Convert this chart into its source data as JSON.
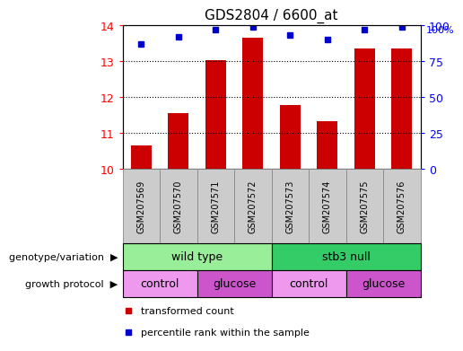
{
  "title": "GDS2804 / 6600_at",
  "samples": [
    "GSM207569",
    "GSM207570",
    "GSM207571",
    "GSM207572",
    "GSM207573",
    "GSM207574",
    "GSM207575",
    "GSM207576"
  ],
  "bar_values": [
    10.65,
    11.55,
    13.02,
    13.65,
    11.78,
    11.32,
    13.35,
    13.35
  ],
  "dot_values": [
    87,
    92,
    97,
    99,
    93,
    90,
    97,
    99
  ],
  "ylim_left": [
    10,
    14
  ],
  "ylim_right": [
    0,
    100
  ],
  "yticks_left": [
    10,
    11,
    12,
    13,
    14
  ],
  "yticks_right": [
    0,
    25,
    50,
    75,
    100
  ],
  "bar_color": "#cc0000",
  "dot_color": "#0000cc",
  "grid_color": "#000000",
  "genotype_groups": [
    {
      "label": "wild type",
      "start": 0,
      "end": 4,
      "color": "#99ee99"
    },
    {
      "label": "stb3 null",
      "start": 4,
      "end": 8,
      "color": "#33cc66"
    }
  ],
  "protocol_groups": [
    {
      "label": "control",
      "start": 0,
      "end": 2,
      "color": "#ee99ee"
    },
    {
      "label": "glucose",
      "start": 2,
      "end": 4,
      "color": "#cc55cc"
    },
    {
      "label": "control",
      "start": 4,
      "end": 6,
      "color": "#ee99ee"
    },
    {
      "label": "glucose",
      "start": 6,
      "end": 8,
      "color": "#cc55cc"
    }
  ],
  "legend_items": [
    {
      "label": "transformed count",
      "color": "#cc0000"
    },
    {
      "label": "percentile rank within the sample",
      "color": "#0000cc"
    }
  ],
  "genotype_label": "genotype/variation",
  "protocol_label": "growth protocol",
  "tick_bg_color": "#cccccc",
  "tick_border_color": "#888888",
  "figsize": [
    5.15,
    3.84
  ],
  "dpi": 100
}
